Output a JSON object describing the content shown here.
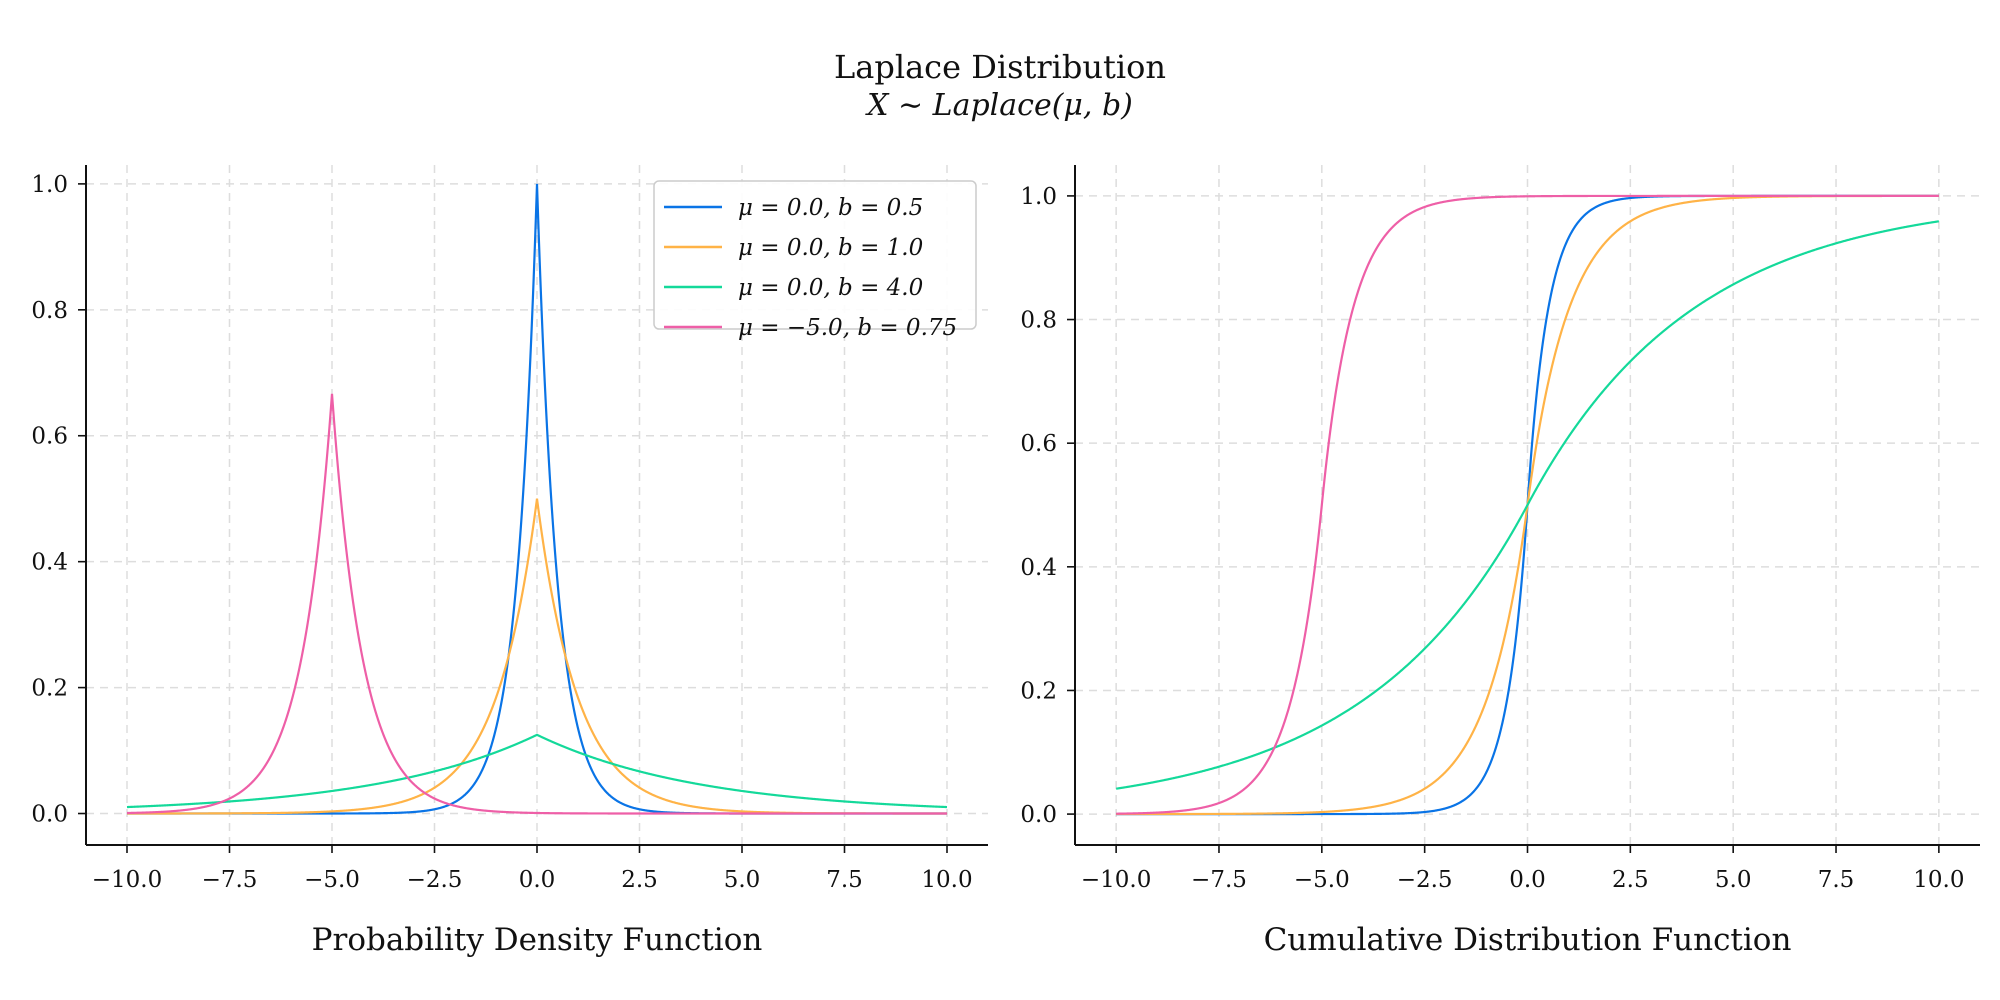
{
  "title": "Laplace Distribution",
  "subtitle": "X ∼ Laplace(μ, b)",
  "chart_data": [
    {
      "type": "line",
      "name": "pdf",
      "xlabel": "Probability Density Function",
      "ylabel": "",
      "xlim": [
        -11,
        11
      ],
      "ylim": [
        -0.05,
        1.03
      ],
      "xticks": [
        -10,
        -7.5,
        -5,
        -2.5,
        0,
        2.5,
        5,
        7.5,
        10
      ],
      "xtick_labels": [
        "−10.0",
        "−7.5",
        "−5.0",
        "−2.5",
        "0.0",
        "2.5",
        "5.0",
        "7.5",
        "10.0"
      ],
      "yticks": [
        0,
        0.2,
        0.4,
        0.6,
        0.8,
        1.0
      ],
      "ytick_labels": [
        "0.0",
        "0.2",
        "0.4",
        "0.6",
        "0.8",
        "1.0"
      ],
      "grid": true,
      "legend_position": "top-right",
      "series": [
        {
          "name": "μ = 0.0, b = 0.5",
          "mu": 0.0,
          "b": 0.5,
          "color": "#0a74e6"
        },
        {
          "name": "μ = 0.0, b = 1.0",
          "mu": 0.0,
          "b": 1.0,
          "color": "#ffb347"
        },
        {
          "name": "μ = 0.0, b = 4.0",
          "mu": 0.0,
          "b": 4.0,
          "color": "#14d99a"
        },
        {
          "name": "μ = −5.0, b = 0.75",
          "mu": -5.0,
          "b": 0.75,
          "color": "#ee5fa7"
        }
      ],
      "x_range": [
        -10,
        10
      ]
    },
    {
      "type": "line",
      "name": "cdf",
      "xlabel": "Cumulative Distribution Function",
      "ylabel": "",
      "xlim": [
        -11,
        11
      ],
      "ylim": [
        -0.05,
        1.05
      ],
      "xticks": [
        -10,
        -7.5,
        -5,
        -2.5,
        0,
        2.5,
        5,
        7.5,
        10
      ],
      "xtick_labels": [
        "−10.0",
        "−7.5",
        "−5.0",
        "−2.5",
        "0.0",
        "2.5",
        "5.0",
        "7.5",
        "10.0"
      ],
      "yticks": [
        0,
        0.2,
        0.4,
        0.6,
        0.8,
        1.0
      ],
      "ytick_labels": [
        "0.0",
        "0.2",
        "0.4",
        "0.6",
        "0.8",
        "1.0"
      ],
      "grid": true,
      "series": [
        {
          "name": "μ = 0.0, b = 0.5",
          "mu": 0.0,
          "b": 0.5,
          "color": "#0a74e6"
        },
        {
          "name": "μ = 0.0, b = 1.0",
          "mu": 0.0,
          "b": 1.0,
          "color": "#ffb347"
        },
        {
          "name": "μ = 0.0, b = 4.0",
          "mu": 0.0,
          "b": 4.0,
          "color": "#14d99a"
        },
        {
          "name": "μ = −5.0, b = 0.75",
          "mu": -5.0,
          "b": 0.75,
          "color": "#ee5fa7"
        }
      ],
      "x_range": [
        -10,
        10
      ]
    }
  ]
}
